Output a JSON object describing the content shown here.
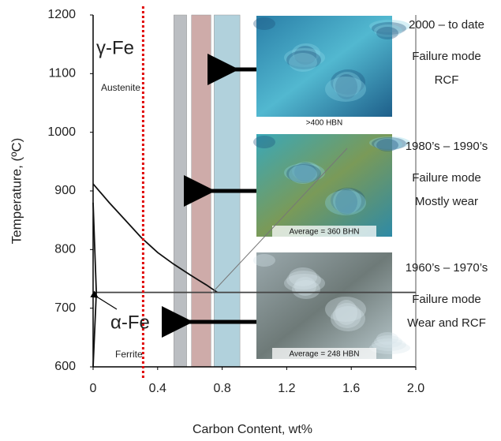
{
  "chart_data": {
    "type": "line",
    "x_label": "Carbon Content, wt%",
    "y_label": "Temperature, (ºC)",
    "xlim": [
      0,
      2
    ],
    "ylim": [
      600,
      1200
    ],
    "xticks": [
      0,
      0.4,
      0.8,
      1.2,
      1.6,
      {
        "value": 2,
        "label": "2.0"
      }
    ],
    "yticks": [
      600,
      700,
      800,
      900,
      1000,
      1100,
      1200
    ],
    "series": [
      {
        "x": [
          0,
          0.1,
          0.2,
          0.3,
          0.4,
          0.5,
          0.6,
          0.7,
          0.77
        ],
        "values": [
          912,
          880,
          850,
          820,
          795,
          775,
          757,
          740,
          727
        ],
        "color": "#111"
      },
      {
        "x": [
          0,
          2
        ],
        "values": [
          727,
          727
        ],
        "color": "#444"
      },
      {
        "x": [
          0,
          0.02,
          0
        ],
        "values": [
          880,
          727,
          600
        ],
        "color": "#111"
      }
    ],
    "bands": [
      {
        "x": [
          0.5,
          0.58
        ],
        "color": "#b4b8bc"
      },
      {
        "x": [
          0.61,
          0.73
        ],
        "color": "#c9a3a0"
      },
      {
        "x": [
          0.75,
          0.91
        ],
        "color": "#a9cdd9"
      }
    ],
    "marker_line": {
      "x": 0.31,
      "color": "#e00000"
    },
    "annotations": {
      "gamma": "γ-Fe",
      "austenite": "Austenite",
      "alpha": "α-Fe",
      "ferrite": "Ferrite"
    },
    "micrographs": [
      {
        "caption": ">400 HBN",
        "era": "2000 – to date",
        "mode": "Failure mode",
        "detail": "RCF"
      },
      {
        "caption": "Average = 360 BHN",
        "era": "1980’s – 1990’s",
        "mode": "Failure mode",
        "detail": "Mostly wear"
      },
      {
        "caption": "Average = 248 HBN",
        "era": "1960’s – 1970’s",
        "mode": "Failure mode",
        "detail": "Wear and RCF"
      }
    ]
  }
}
